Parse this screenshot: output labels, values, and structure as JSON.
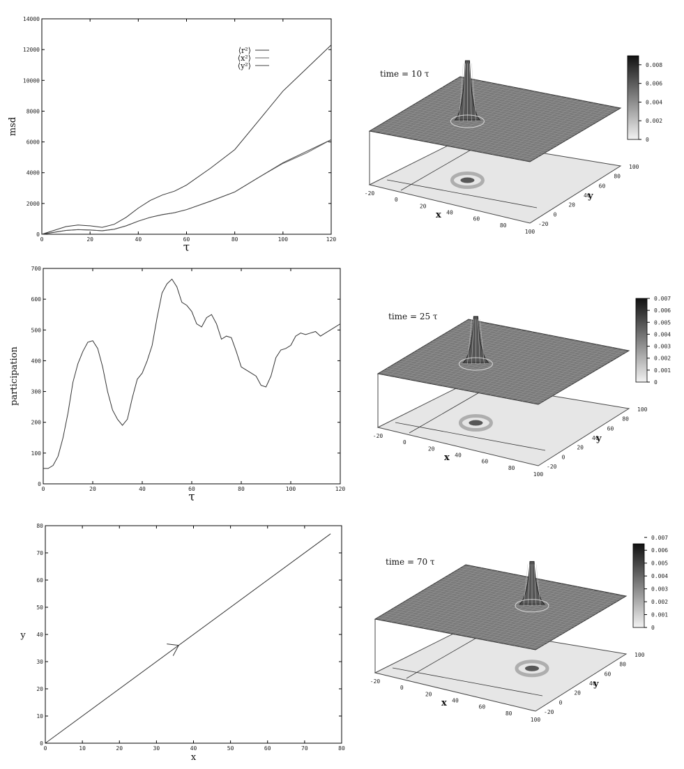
{
  "chart_data": [
    {
      "type": "line",
      "xlabel": "τ",
      "ylabel": "msd",
      "xlim": [
        0,
        120
      ],
      "ylim": [
        0,
        14000
      ],
      "xticks": [
        "0",
        "20",
        "40",
        "60",
        "80",
        "100",
        "120"
      ],
      "yticks": [
        "0",
        "2000",
        "4000",
        "6000",
        "8000",
        "10000",
        "12000",
        "14000"
      ],
      "legend_position": "top-right",
      "series": [
        {
          "name": "⟨r²⟩",
          "x": [
            0,
            5,
            10,
            15,
            20,
            25,
            30,
            35,
            40,
            45,
            50,
            55,
            60,
            70,
            80,
            90,
            100,
            110,
            120
          ],
          "y": [
            0,
            250,
            500,
            600,
            550,
            450,
            650,
            1100,
            1700,
            2200,
            2550,
            2800,
            3200,
            4300,
            5500,
            7400,
            9300,
            10800,
            12300
          ]
        },
        {
          "name": "⟨x²⟩",
          "x": [
            0,
            5,
            10,
            15,
            20,
            25,
            30,
            35,
            40,
            45,
            50,
            55,
            60,
            70,
            80,
            90,
            100,
            110,
            120
          ],
          "y": [
            0,
            120,
            250,
            300,
            280,
            220,
            320,
            550,
            850,
            1100,
            1270,
            1400,
            1600,
            2150,
            2750,
            3700,
            4600,
            5300,
            6150
          ]
        },
        {
          "name": "⟨y²⟩",
          "x": [
            0,
            5,
            10,
            15,
            20,
            25,
            30,
            35,
            40,
            45,
            50,
            55,
            60,
            70,
            80,
            90,
            100,
            110,
            120
          ],
          "y": [
            0,
            130,
            250,
            300,
            270,
            230,
            330,
            550,
            850,
            1100,
            1280,
            1400,
            1600,
            2150,
            2750,
            3700,
            4650,
            5400,
            6150
          ]
        }
      ]
    },
    {
      "type": "line",
      "xlabel": "τ",
      "ylabel": "participation",
      "xlim": [
        0,
        120
      ],
      "ylim": [
        0,
        700
      ],
      "xticks": [
        "0",
        "20",
        "40",
        "60",
        "80",
        "100",
        "120"
      ],
      "yticks": [
        "0",
        "100",
        "200",
        "300",
        "400",
        "500",
        "600",
        "700"
      ],
      "series": [
        {
          "x": [
            0,
            2,
            4,
            6,
            8,
            10,
            12,
            14,
            16,
            18,
            20,
            22,
            24,
            26,
            28,
            30,
            32,
            34,
            36,
            38,
            40,
            42,
            44,
            46,
            48,
            50,
            52,
            54,
            56,
            58,
            60,
            62,
            64,
            66,
            68,
            70,
            72,
            74,
            76,
            78,
            80,
            82,
            84,
            86,
            88,
            90,
            92,
            94,
            96,
            98,
            100,
            102,
            104,
            106,
            108,
            110,
            112,
            114,
            116,
            118,
            120
          ],
          "y": [
            50,
            50,
            60,
            90,
            150,
            230,
            330,
            390,
            430,
            460,
            465,
            440,
            380,
            300,
            240,
            210,
            190,
            210,
            280,
            340,
            360,
            400,
            450,
            540,
            620,
            650,
            665,
            640,
            590,
            580,
            560,
            520,
            510,
            540,
            550,
            520,
            470,
            480,
            475,
            430,
            380,
            370,
            360,
            350,
            320,
            315,
            350,
            410,
            435,
            440,
            450,
            480,
            490,
            485,
            490,
            495,
            480,
            490,
            500,
            510,
            520
          ]
        }
      ]
    },
    {
      "type": "line",
      "xlabel": "x",
      "ylabel": "y",
      "xlim": [
        0,
        80
      ],
      "ylim": [
        0,
        80
      ],
      "xticks": [
        "0",
        "10",
        "20",
        "30",
        "40",
        "50",
        "60",
        "70",
        "80"
      ],
      "yticks": [
        "0",
        "10",
        "20",
        "30",
        "40",
        "50",
        "60",
        "70",
        "80"
      ],
      "annotations": [
        "arrow at (36, 36) pointing along trajectory"
      ],
      "series": [
        {
          "x": [
            0,
            77
          ],
          "y": [
            0,
            77
          ]
        }
      ]
    },
    {
      "type": "surface3d",
      "title": "time = 10 τ",
      "xlabel": "x",
      "ylabel": "y",
      "xticks": [
        "-20",
        "0",
        "20",
        "40",
        "60",
        "80",
        "100"
      ],
      "yticks": [
        "-20",
        "0",
        "20",
        "40",
        "60",
        "80",
        "100"
      ],
      "colorbar_ticks": [
        "0",
        "0.002",
        "0.004",
        "0.006",
        "0.008"
      ],
      "peak_position": [
        25,
        30
      ],
      "peak_value": 0.009
    },
    {
      "type": "surface3d",
      "title": "time = 25 τ",
      "xlabel": "x",
      "ylabel": "y",
      "xticks": [
        "-20",
        "0",
        "20",
        "40",
        "60",
        "80",
        "100"
      ],
      "yticks": [
        "-20",
        "0",
        "20",
        "40",
        "60",
        "80",
        "100"
      ],
      "colorbar_ticks": [
        "0",
        "0.001",
        "0.002",
        "0.003",
        "0.004",
        "0.005",
        "0.006",
        "0.007"
      ],
      "peak_position": [
        25,
        30
      ],
      "peak_value": 0.007
    },
    {
      "type": "surface3d",
      "title": "time = 70 τ",
      "xlabel": "x",
      "ylabel": "y",
      "xticks": [
        "-20",
        "0",
        "20",
        "40",
        "60",
        "80",
        "100"
      ],
      "yticks": [
        "-20",
        "0",
        "20",
        "40",
        "60",
        "80",
        "100"
      ],
      "colorbar_ticks": [
        "0",
        "0.001",
        "0.002",
        "0.003",
        "0.004",
        "0.005",
        "0.006",
        "0.007"
      ],
      "peak_position": [
        55,
        55
      ],
      "peak_value": 0.0065
    }
  ]
}
